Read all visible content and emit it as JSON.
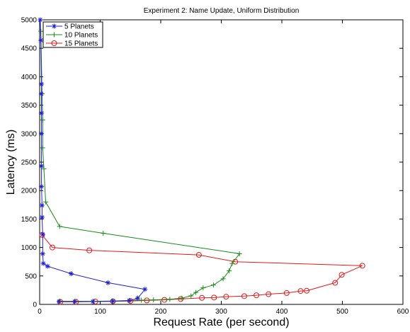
{
  "chart_data": {
    "type": "line",
    "title": "Experiment 2: Name Update, Uniform Distribution",
    "xlabel": "Request Rate (per second)",
    "ylabel": "Latency (ms)",
    "xlim": [
      0,
      600
    ],
    "ylim": [
      0,
      5000
    ],
    "xticks": [
      0,
      100,
      200,
      300,
      400,
      500,
      600
    ],
    "yticks": [
      0,
      500,
      1000,
      1500,
      2000,
      2500,
      3000,
      3500,
      4000,
      4500,
      5000
    ],
    "grid": false,
    "legend": "top-left",
    "series": [
      {
        "name": "5 Planets",
        "color": "#1f1fd6",
        "marker": "star",
        "points": [
          [
            1,
            5000
          ],
          [
            2,
            4640
          ],
          [
            3,
            3870
          ],
          [
            3,
            3700
          ],
          [
            3,
            3360
          ],
          [
            3,
            3000
          ],
          [
            3,
            2430
          ],
          [
            3,
            2070
          ],
          [
            4,
            1740
          ],
          [
            4,
            1530
          ],
          [
            5,
            1230
          ],
          [
            5,
            890
          ],
          [
            6,
            720
          ],
          [
            13,
            670
          ],
          [
            52,
            540
          ],
          [
            113,
            380
          ],
          [
            174,
            265
          ],
          [
            162,
            110
          ],
          [
            148,
            65
          ],
          [
            121,
            55
          ],
          [
            88,
            50
          ],
          [
            58,
            50
          ],
          [
            32,
            50
          ]
        ]
      },
      {
        "name": "10 Planets",
        "color": "#1a8a1a",
        "marker": "plus",
        "points": [
          [
            2,
            4800
          ],
          [
            4,
            3700
          ],
          [
            5,
            3240
          ],
          [
            5,
            2750
          ],
          [
            7,
            2380
          ],
          [
            10,
            1800
          ],
          [
            33,
            1370
          ],
          [
            105,
            1250
          ],
          [
            330,
            890
          ],
          [
            318,
            720
          ],
          [
            313,
            590
          ],
          [
            303,
            450
          ],
          [
            287,
            340
          ],
          [
            270,
            290
          ],
          [
            258,
            210
          ],
          [
            250,
            150
          ],
          [
            235,
            110
          ],
          [
            215,
            90
          ],
          [
            188,
            80
          ],
          [
            168,
            75
          ],
          [
            148,
            70
          ],
          [
            120,
            60
          ],
          [
            88,
            55
          ],
          [
            58,
            55
          ],
          [
            33,
            55
          ]
        ]
      },
      {
        "name": "15 Planets",
        "color": "#e01a1a",
        "marker": "circle",
        "points": [
          [
            4,
            1220
          ],
          [
            21,
            1000
          ],
          [
            82,
            950
          ],
          [
            263,
            870
          ],
          [
            323,
            750
          ],
          [
            533,
            680
          ],
          [
            499,
            520
          ],
          [
            488,
            380
          ],
          [
            441,
            240
          ],
          [
            431,
            235
          ],
          [
            408,
            200
          ],
          [
            378,
            180
          ],
          [
            358,
            160
          ],
          [
            338,
            145
          ],
          [
            308,
            135
          ],
          [
            288,
            120
          ],
          [
            268,
            115
          ],
          [
            233,
            95
          ],
          [
            206,
            80
          ],
          [
            177,
            70
          ],
          [
            150,
            60
          ],
          [
            121,
            55
          ],
          [
            92,
            50
          ],
          [
            60,
            45
          ],
          [
            34,
            45
          ]
        ]
      }
    ]
  }
}
